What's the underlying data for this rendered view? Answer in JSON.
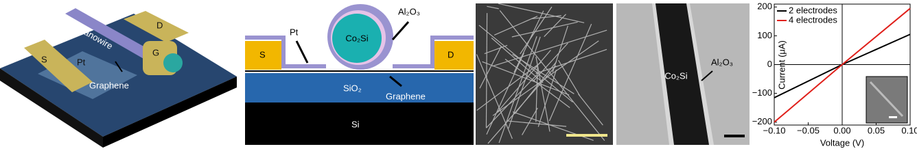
{
  "device": {
    "nanowire": "Nanowire",
    "drain": "D",
    "source": "S",
    "pt": "Pt",
    "gate": "G",
    "graphene": "Graphene"
  },
  "cross_section": {
    "pt": "Pt",
    "core": "Co₂Si",
    "shell": "Al₂O₃",
    "source": "S",
    "drain": "D",
    "oxide": "SiO₂",
    "graphene": "Graphene",
    "substrate": "Si"
  },
  "tem": {
    "core": "Co₂Si",
    "shell": "Al₂O₃"
  },
  "chart_data": {
    "type": "line",
    "xlabel": "Voltage (V)",
    "ylabel": "Current (μA)",
    "x": [
      -0.1,
      0,
      0.1
    ],
    "series": [
      {
        "name": "2 electrodes",
        "color": "#000000",
        "values": [
          -115,
          0,
          105
        ]
      },
      {
        "name": "4 electrodes",
        "color": "#e0201b",
        "values": [
          -200,
          0,
          195
        ]
      }
    ],
    "xlim": [
      -0.1,
      0.1
    ],
    "xticks": [
      {
        "value": -0.1,
        "label": "−0.10"
      },
      {
        "value": -0.05,
        "label": "−0.05"
      },
      {
        "value": 0,
        "label": "0.00"
      },
      {
        "value": 0.05,
        "label": "0.05"
      },
      {
        "value": 0.1,
        "label": "0.10"
      }
    ],
    "ylim": [
      -210,
      210
    ],
    "yticks": [
      {
        "value": -200,
        "label": "−200"
      },
      {
        "value": -100,
        "label": "−100"
      },
      0,
      100,
      200
    ],
    "legend": "upper left"
  }
}
